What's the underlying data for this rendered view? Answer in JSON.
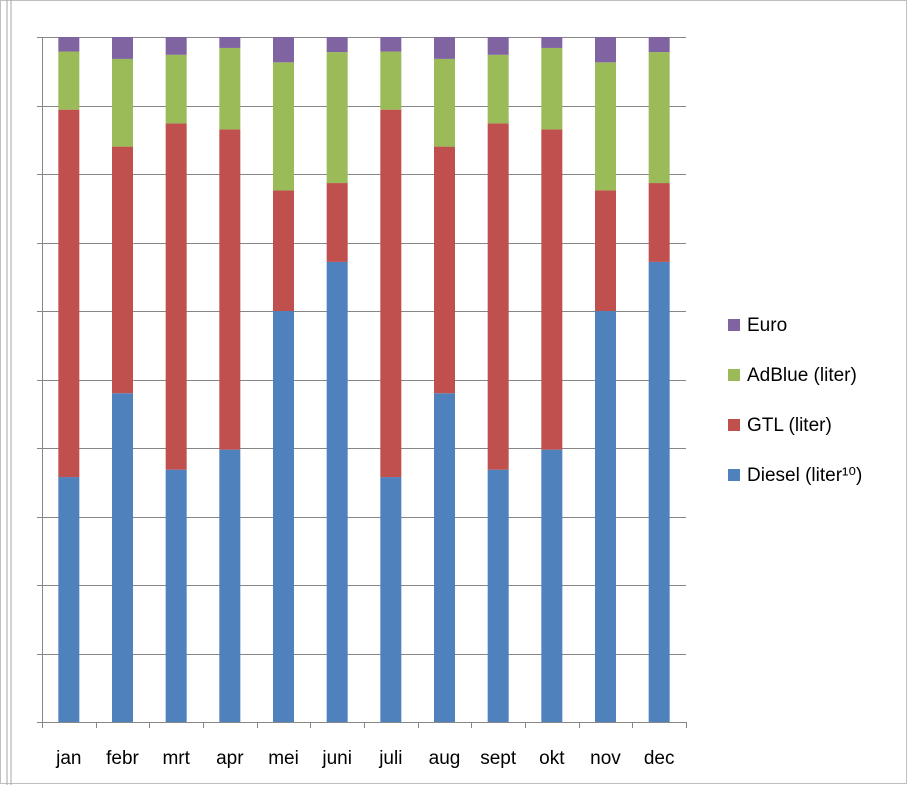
{
  "chart_data": {
    "type": "bar",
    "stacked": true,
    "percent_stacked": true,
    "categories": [
      "jan",
      "febr",
      "mrt",
      "apr",
      "mei",
      "juni",
      "juli",
      "aug",
      "sept",
      "okt",
      "nov",
      "dec"
    ],
    "series": [
      {
        "name": "Diesel (liter¹⁰)",
        "color": "#4f81bd",
        "values": [
          35.4,
          48.0,
          36.8,
          39.8,
          60.0,
          67.1,
          35.4,
          48.0,
          36.8,
          39.8,
          60.0,
          67.1
        ]
      },
      {
        "name": "GTL (liter)",
        "color": "#c0504d",
        "values": [
          53.1,
          36.0,
          50.5,
          46.8,
          17.6,
          11.5,
          53.1,
          36.0,
          50.5,
          46.8,
          17.6,
          11.5
        ]
      },
      {
        "name": "AdBlue (liter)",
        "color": "#9bbb59",
        "values": [
          8.4,
          12.8,
          10.0,
          11.9,
          18.7,
          19.1,
          8.4,
          12.8,
          10.0,
          11.9,
          18.7,
          19.1
        ]
      },
      {
        "name": "Euro",
        "color": "#8064a2",
        "values": [
          2.1,
          3.2,
          2.6,
          1.6,
          3.7,
          2.2,
          2.1,
          3.2,
          2.6,
          1.6,
          3.7,
          2.2
        ]
      }
    ],
    "ylim": [
      0,
      100
    ],
    "yticks_count": 10,
    "grid": true,
    "legend_position": "right",
    "title": "",
    "xlabel": "",
    "ylabel": ""
  }
}
